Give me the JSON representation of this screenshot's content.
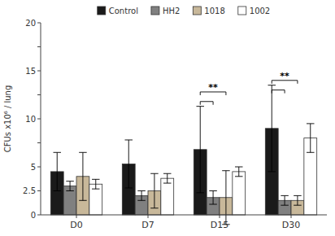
{
  "chart_data": {
    "type": "bar",
    "categories": [
      "D0",
      "D7",
      "D15",
      "D30"
    ],
    "series": [
      {
        "name": "Control",
        "color": "#1a1a1a",
        "values": [
          4.5,
          5.3,
          6.8,
          9.0
        ],
        "errors": [
          2.0,
          2.5,
          4.5,
          4.5
        ]
      },
      {
        "name": "HH2",
        "color": "#808080",
        "values": [
          3.0,
          2.0,
          1.8,
          1.5
        ],
        "errors": [
          0.5,
          0.5,
          0.7,
          0.5
        ]
      },
      {
        "name": "1018",
        "color": "#c8b89a",
        "values": [
          4.0,
          2.5,
          1.8,
          1.5
        ],
        "errors": [
          2.5,
          1.8,
          2.8,
          0.5
        ]
      },
      {
        "name": "1002",
        "color": "#ffffff",
        "values": [
          3.2,
          3.8,
          4.5,
          8.0
        ],
        "errors": [
          0.5,
          0.5,
          0.5,
          1.5
        ]
      }
    ],
    "ylabel": "CFUs x10⁶ / lung",
    "ylim": [
      0,
      20
    ],
    "yticks": [
      0,
      2.5,
      5,
      {
        "value": 7.5,
        "label": null
      },
      10,
      {
        "value": 12.5,
        "label": null
      },
      15,
      {
        "value": 17.5,
        "label": null
      },
      20
    ],
    "annotations": [
      {
        "text": "**",
        "category": "D15",
        "from": "Control",
        "to": "1018",
        "y": 12.8
      },
      {
        "category": "D15",
        "from": "Control",
        "to": "HH2",
        "y": 11.8
      },
      {
        "text": "**",
        "category": "D30",
        "from": "Control",
        "to": "1018",
        "y": 14.0
      },
      {
        "category": "D30",
        "from": "Control",
        "to": "HH2",
        "y": 13.0
      }
    ],
    "grid": false,
    "legend": "top"
  }
}
